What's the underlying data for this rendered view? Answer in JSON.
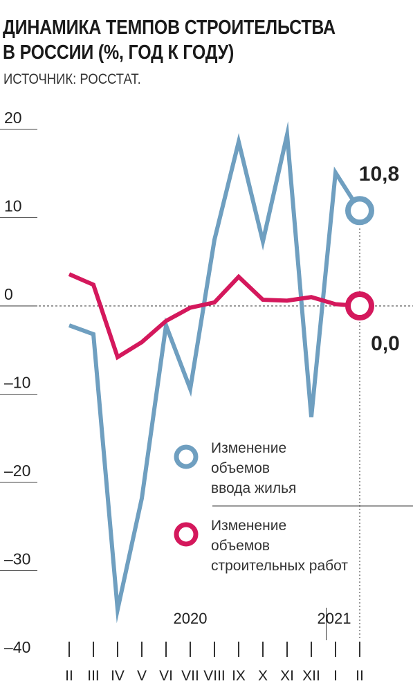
{
  "header": {
    "title_line1": "ДИНАМИКА ТЕМПОВ СТРОИТЕЛЬСТВА",
    "title_line2": "В РОССИИ (%, ГОД К ГОДУ)",
    "source": "ИСТОЧНИК: РОССТАТ."
  },
  "colors": {
    "housing": "#6f9fc0",
    "construction": "#d4185c"
  },
  "chart_data": {
    "type": "line",
    "title": "ДИНАМИКА ТЕМПОВ СТРОИТЕЛЬСТВА В РОССИИ (%, ГОД К ГОДУ)",
    "categories": [
      "II",
      "III",
      "IV",
      "V",
      "VI",
      "VII",
      "VIII",
      "IX",
      "X",
      "XI",
      "XII",
      "I",
      "II"
    ],
    "year_labels": [
      "2020",
      "2021"
    ],
    "ylim": [
      -40,
      20
    ],
    "yticks": [
      "20",
      "10",
      "0",
      "–10",
      "–20",
      "–30",
      "–40"
    ],
    "ytick_values": [
      20,
      10,
      0,
      -10,
      -20,
      -30,
      -40
    ],
    "series": [
      {
        "name": "Изменение объемов ввода жилья",
        "legend_lines": [
          "Изменение",
          "объемов",
          "ввода жилья"
        ],
        "values": [
          -2.2,
          -3.2,
          -34.4,
          -21.8,
          -2.2,
          -9.4,
          7.5,
          18.6,
          7.3,
          19.4,
          -12.6,
          15.1,
          10.8
        ]
      },
      {
        "name": "Изменение объемов строительных работ",
        "legend_lines": [
          "Изменение",
          "объемов",
          "строительных работ"
        ],
        "values": [
          3.6,
          2.4,
          -5.8,
          -4.1,
          -1.7,
          -0.2,
          0.4,
          3.3,
          0.7,
          0.6,
          1.0,
          0.2,
          0.0
        ]
      }
    ],
    "end_labels": [
      "10,8",
      "0,0"
    ]
  }
}
